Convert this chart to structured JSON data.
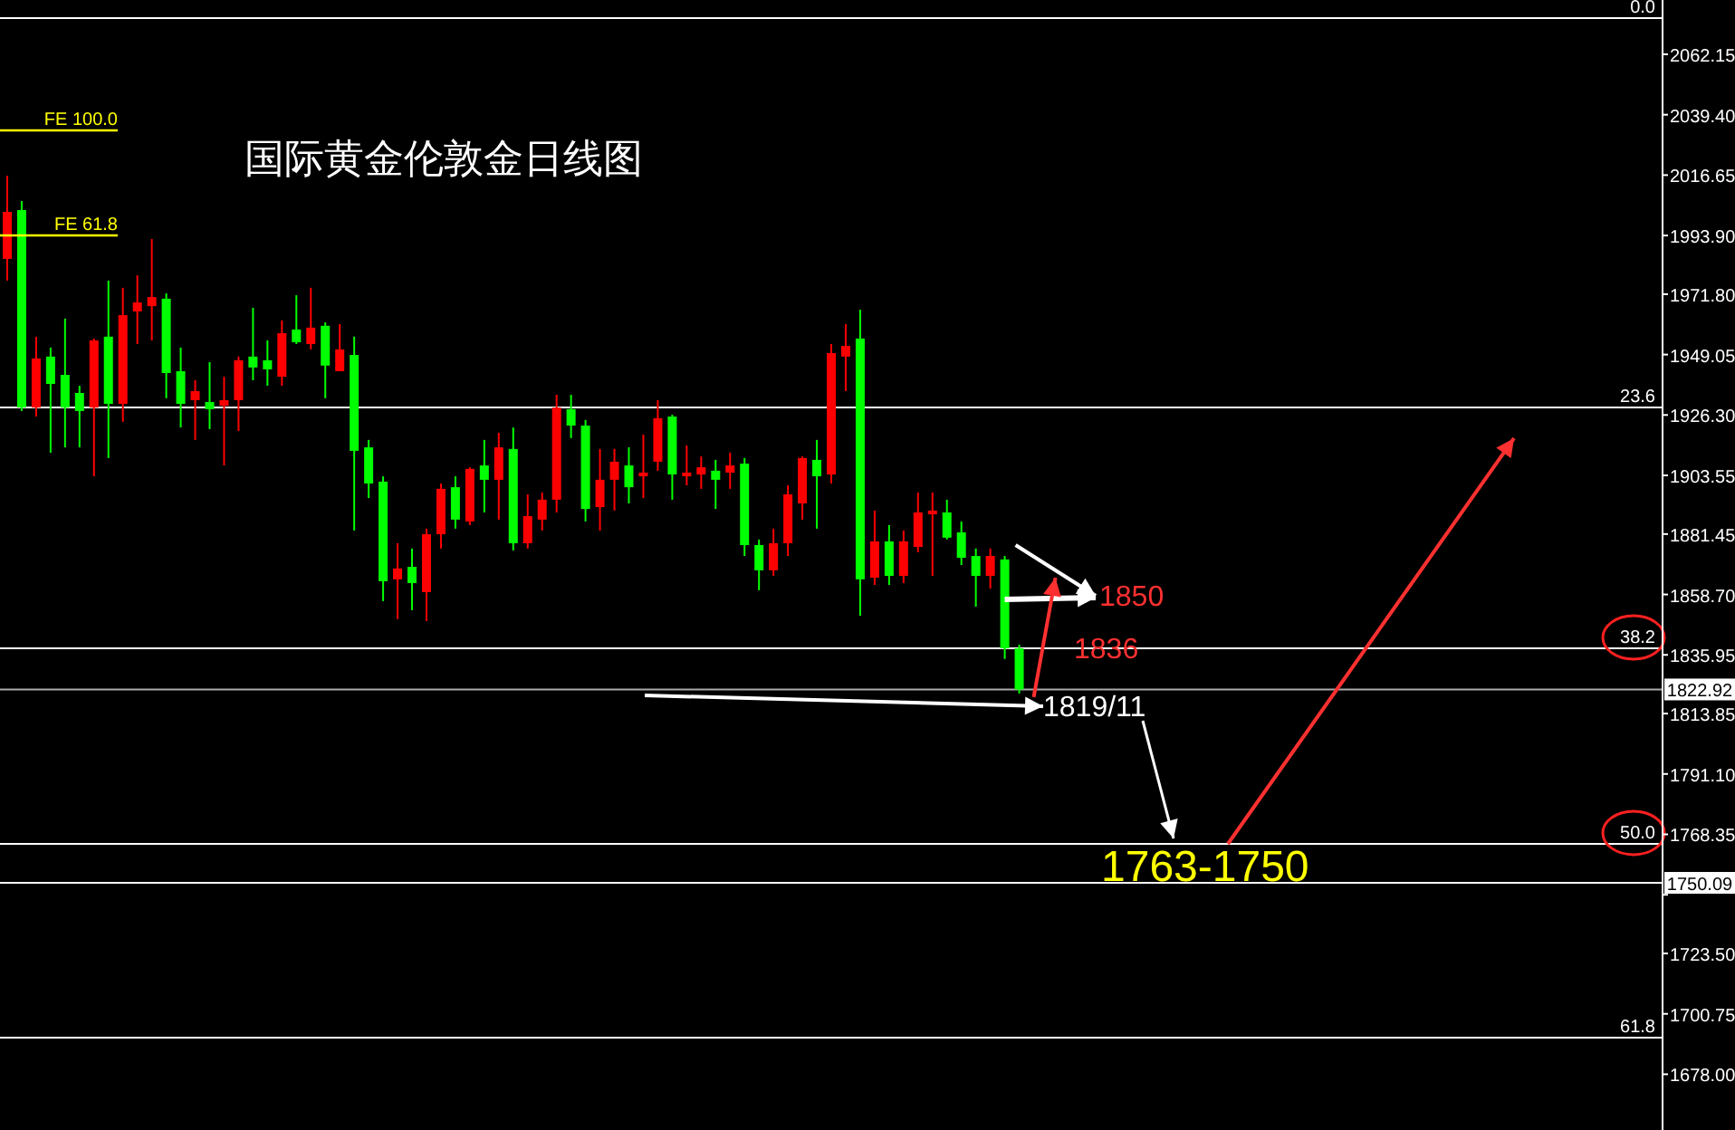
{
  "chart_data": {
    "type": "candlestick",
    "title": "国际黄金伦敦金日线图",
    "categories": [
      null,
      null,
      null,
      null,
      null,
      null,
      null,
      null,
      null,
      null,
      null,
      null,
      null,
      null,
      null,
      null,
      null,
      null,
      null,
      null,
      null,
      null,
      null,
      null,
      null,
      null,
      null,
      null,
      null,
      null,
      null,
      null,
      null,
      null,
      null,
      null,
      null,
      null,
      null,
      null,
      null,
      null,
      null,
      null,
      null,
      null,
      null,
      null,
      null,
      null,
      null,
      null,
      null,
      null,
      null,
      null,
      null,
      null,
      null,
      null,
      null,
      null,
      null,
      null,
      null,
      null,
      null,
      null,
      null,
      null,
      null,
      null,
      null,
      null,
      null,
      null,
      null,
      null,
      null,
      null,
      null,
      null,
      null,
      null,
      null,
      null,
      null,
      null,
      null,
      null,
      null,
      null,
      null,
      null,
      null,
      null,
      null,
      null,
      null,
      null,
      null,
      null,
      null,
      null,
      null,
      null,
      null,
      null,
      null,
      null,
      null,
      null,
      null,
      null,
      null
    ],
    "ohlc": [
      [
        1985.1,
        2016.4,
        1976.9,
        2002.8
      ],
      [
        2003.5,
        2006.9,
        1927.8,
        1929.1
      ],
      [
        1929.1,
        1955.8,
        1925.7,
        1947.6
      ],
      [
        1948.3,
        1951.7,
        1912.1,
        1938.0
      ],
      [
        1941.4,
        1962.6,
        1914.1,
        1929.1
      ],
      [
        1934.6,
        1937.3,
        1914.1,
        1927.8
      ],
      [
        1929.1,
        1955.1,
        1903.2,
        1954.4
      ],
      [
        1955.8,
        1976.9,
        1910.1,
        1930.5
      ],
      [
        1930.5,
        1974.2,
        1923.7,
        1963.9
      ],
      [
        1965.3,
        1978.9,
        1953.0,
        1968.7
      ],
      [
        1967.3,
        1992.6,
        1954.4,
        1970.7
      ],
      [
        1970.1,
        1972.1,
        1932.6,
        1942.1
      ],
      [
        1942.8,
        1951.7,
        1921.6,
        1930.5
      ],
      [
        1931.9,
        1939.4,
        1916.9,
        1935.3
      ],
      [
        1931.2,
        1946.2,
        1921.0,
        1928.5
      ],
      [
        1929.8,
        1940.7,
        1907.3,
        1931.9
      ],
      [
        1931.9,
        1948.3,
        1920.3,
        1946.9
      ],
      [
        1948.3,
        1966.7,
        1939.4,
        1944.2
      ],
      [
        1946.9,
        1954.4,
        1937.3,
        1943.5
      ],
      [
        1940.7,
        1961.9,
        1937.3,
        1957.1
      ],
      [
        1958.5,
        1971.4,
        1953.0,
        1953.7
      ],
      [
        1953.0,
        1974.2,
        1951.0,
        1959.2
      ],
      [
        1959.9,
        1961.2,
        1932.6,
        1944.9
      ],
      [
        1942.8,
        1960.5,
        1942.8,
        1951.0
      ],
      [
        1948.9,
        1955.8,
        1882.8,
        1912.8
      ],
      [
        1914.1,
        1916.9,
        1895.0,
        1900.5
      ],
      [
        1901.2,
        1903.2,
        1856.2,
        1863.7
      ],
      [
        1864.4,
        1878.0,
        1849.4,
        1868.5
      ],
      [
        1869.1,
        1876.0,
        1852.8,
        1863.0
      ],
      [
        1859.6,
        1883.5,
        1848.7,
        1881.4
      ],
      [
        1881.4,
        1900.5,
        1876.0,
        1898.5
      ],
      [
        1899.1,
        1903.2,
        1883.5,
        1886.9
      ],
      [
        1886.2,
        1906.6,
        1884.8,
        1906.0
      ],
      [
        1907.3,
        1916.9,
        1889.6,
        1901.9
      ],
      [
        1901.9,
        1919.6,
        1886.9,
        1914.1
      ],
      [
        1913.5,
        1921.6,
        1875.3,
        1878.0
      ],
      [
        1878.0,
        1896.4,
        1876.0,
        1888.2
      ],
      [
        1886.9,
        1897.1,
        1882.8,
        1894.4
      ],
      [
        1894.4,
        1933.9,
        1889.6,
        1929.1
      ],
      [
        1928.5,
        1933.9,
        1917.6,
        1922.3
      ],
      [
        1922.3,
        1924.4,
        1886.2,
        1890.9
      ],
      [
        1891.6,
        1913.5,
        1882.8,
        1901.9
      ],
      [
        1901.9,
        1913.5,
        1890.3,
        1908.7
      ],
      [
        1907.3,
        1914.1,
        1893.0,
        1899.1
      ],
      [
        1903.2,
        1918.9,
        1895.0,
        1904.6
      ],
      [
        1908.7,
        1931.9,
        1905.3,
        1925.1
      ],
      [
        1925.7,
        1926.4,
        1894.4,
        1903.9
      ],
      [
        1903.2,
        1914.8,
        1899.8,
        1904.6
      ],
      [
        1903.9,
        1910.7,
        1898.5,
        1906.6
      ],
      [
        1905.3,
        1909.4,
        1890.9,
        1901.9
      ],
      [
        1904.6,
        1912.1,
        1898.5,
        1907.3
      ],
      [
        1908.0,
        1910.1,
        1873.2,
        1877.3
      ],
      [
        1877.3,
        1879.4,
        1860.3,
        1867.8
      ],
      [
        1867.8,
        1883.5,
        1865.7,
        1878.0
      ],
      [
        1878.0,
        1899.8,
        1873.2,
        1896.4
      ],
      [
        1893.0,
        1910.7,
        1886.9,
        1910.1
      ],
      [
        1909.4,
        1916.9,
        1883.5,
        1903.2
      ],
      [
        1903.9,
        1953.0,
        1900.5,
        1949.6
      ],
      [
        1948.3,
        1960.5,
        1935.3,
        1952.3
      ],
      [
        1955.1,
        1966.0,
        1850.7,
        1864.4
      ],
      [
        1865.0,
        1890.3,
        1862.3,
        1878.7
      ],
      [
        1878.7,
        1884.8,
        1862.3,
        1865.7
      ],
      [
        1865.7,
        1882.8,
        1863.0,
        1878.7
      ],
      [
        1876.6,
        1897.1,
        1874.6,
        1889.6
      ],
      [
        1888.9,
        1897.1,
        1865.7,
        1890.3
      ],
      [
        1889.6,
        1894.4,
        1879.4,
        1880.1
      ],
      [
        1882.1,
        1886.2,
        1869.8,
        1872.5
      ],
      [
        1873.2,
        1876.0,
        1854.1,
        1865.7
      ],
      [
        1865.7,
        1876.0,
        1860.9,
        1873.2
      ],
      [
        1871.9,
        1873.2,
        1834.4,
        1838.4
      ],
      [
        1838.4,
        1839.8,
        1821.4,
        1822.92
      ],
      null,
      null,
      null,
      null,
      null,
      null,
      null,
      null,
      null,
      null,
      null,
      null,
      null,
      null,
      null,
      null,
      null,
      null,
      null,
      null,
      null,
      null,
      null,
      null,
      null,
      null,
      null,
      null,
      null,
      null,
      null,
      null,
      null,
      null,
      null,
      null,
      null,
      null,
      null,
      null,
      null,
      null,
      null,
      null
    ],
    "colors": [
      "#ff0000",
      "#00ff00",
      "#ff0000",
      "#00ff00",
      "#00ff00",
      "#00ff00",
      "#ff0000",
      "#00ff00",
      "#ff0000",
      "#ff0000",
      "#ff0000",
      "#00ff00",
      "#00ff00",
      "#ff0000",
      "#00ff00",
      "#ff0000",
      "#ff0000",
      "#00ff00",
      "#00ff00",
      "#ff0000",
      "#00ff00",
      "#ff0000",
      "#00ff00",
      "#ff0000",
      "#00ff00",
      "#00ff00",
      "#00ff00",
      "#ff0000",
      "#00ff00",
      "#ff0000",
      "#ff0000",
      "#00ff00",
      "#ff0000",
      "#00ff00",
      "#ff0000",
      "#00ff00",
      "#ff0000",
      "#ff0000",
      "#ff0000",
      "#00ff00",
      "#00ff00",
      "#ff0000",
      "#ff0000",
      "#00ff00",
      "#ff0000",
      "#ff0000",
      "#00ff00",
      "#ff0000",
      "#ff0000",
      "#00ff00",
      "#ff0000",
      "#00ff00",
      "#00ff00",
      "#ff0000",
      "#ff0000",
      "#ff0000",
      "#00ff00",
      "#ff0000",
      "#ff0000",
      "#00ff00",
      "#ff0000",
      "#00ff00",
      "#ff0000",
      "#ff0000",
      "#ff0000",
      "#00ff00",
      "#00ff00",
      "#00ff00",
      "#ff0000",
      "#00ff00",
      "#00ff00",
      null,
      null,
      null,
      null,
      null,
      null,
      null,
      null,
      null,
      null,
      null,
      null,
      null,
      null,
      null,
      null,
      null,
      null,
      null,
      null,
      null,
      null,
      null,
      null,
      null,
      null,
      null,
      null,
      null,
      null,
      null,
      null,
      null,
      null,
      null,
      null,
      null,
      null,
      null,
      null,
      null,
      null,
      null,
      null
    ],
    "ylim": [
      1657,
      2082.6
    ],
    "yticks": [
      {
        "value": 1678.0,
        "label": "1678.00"
      },
      {
        "value": 1700.75,
        "label": "1700.75"
      },
      {
        "value": 1723.5,
        "label": "1723.50"
      },
      {
        "value": 1745.6,
        "label": null
      },
      {
        "value": 1768.35,
        "label": "1768.35"
      },
      {
        "value": 1791.1,
        "label": "1791.10"
      },
      {
        "value": 1813.85,
        "label": "1813.85"
      },
      {
        "value": 1835.95,
        "label": "1835.95"
      },
      {
        "value": 1858.7,
        "label": "1858.70"
      },
      {
        "value": 1881.45,
        "label": "1881.45"
      },
      {
        "value": 1903.55,
        "label": "1903.55"
      },
      {
        "value": 1926.3,
        "label": "1926.30"
      },
      {
        "value": 1949.05,
        "label": "1949.05"
      },
      {
        "value": 1971.8,
        "label": "1971.80"
      },
      {
        "value": 1993.9,
        "label": "1993.90"
      },
      {
        "value": 2016.65,
        "label": "2016.65"
      },
      {
        "value": 2039.4,
        "label": "2039.40"
      },
      {
        "value": 2062.15,
        "label": "2062.15"
      }
    ],
    "tick_labels": "y",
    "ref_lines": [
      {
        "axis": "y",
        "value": 2075.8,
        "color": "#ffffff"
      },
      {
        "axis": "y",
        "value": 1929.1,
        "color": "#ffffff"
      },
      {
        "axis": "y",
        "value": 1838.4,
        "color": "#ffffff"
      },
      {
        "axis": "y",
        "value": 1822.92,
        "label": "1822.92",
        "color": "#aaaaaa"
      },
      {
        "axis": "y",
        "value": 1764.8,
        "color": "#ffffff"
      },
      {
        "axis": "y",
        "value": 1750.09,
        "label": "1750.09",
        "color": "#ffffff"
      },
      {
        "axis": "y",
        "value": 1691.8,
        "color": "#ffffff"
      }
    ],
    "annotations": [
      "FE 100.0",
      "FE 61.8",
      "1850",
      {
        "text": "1836",
        "y": 1838.4
      },
      "1819/11",
      "1763-1750",
      "0.0",
      "23.6",
      "38.2",
      "50.0",
      "61.8"
    ]
  }
}
